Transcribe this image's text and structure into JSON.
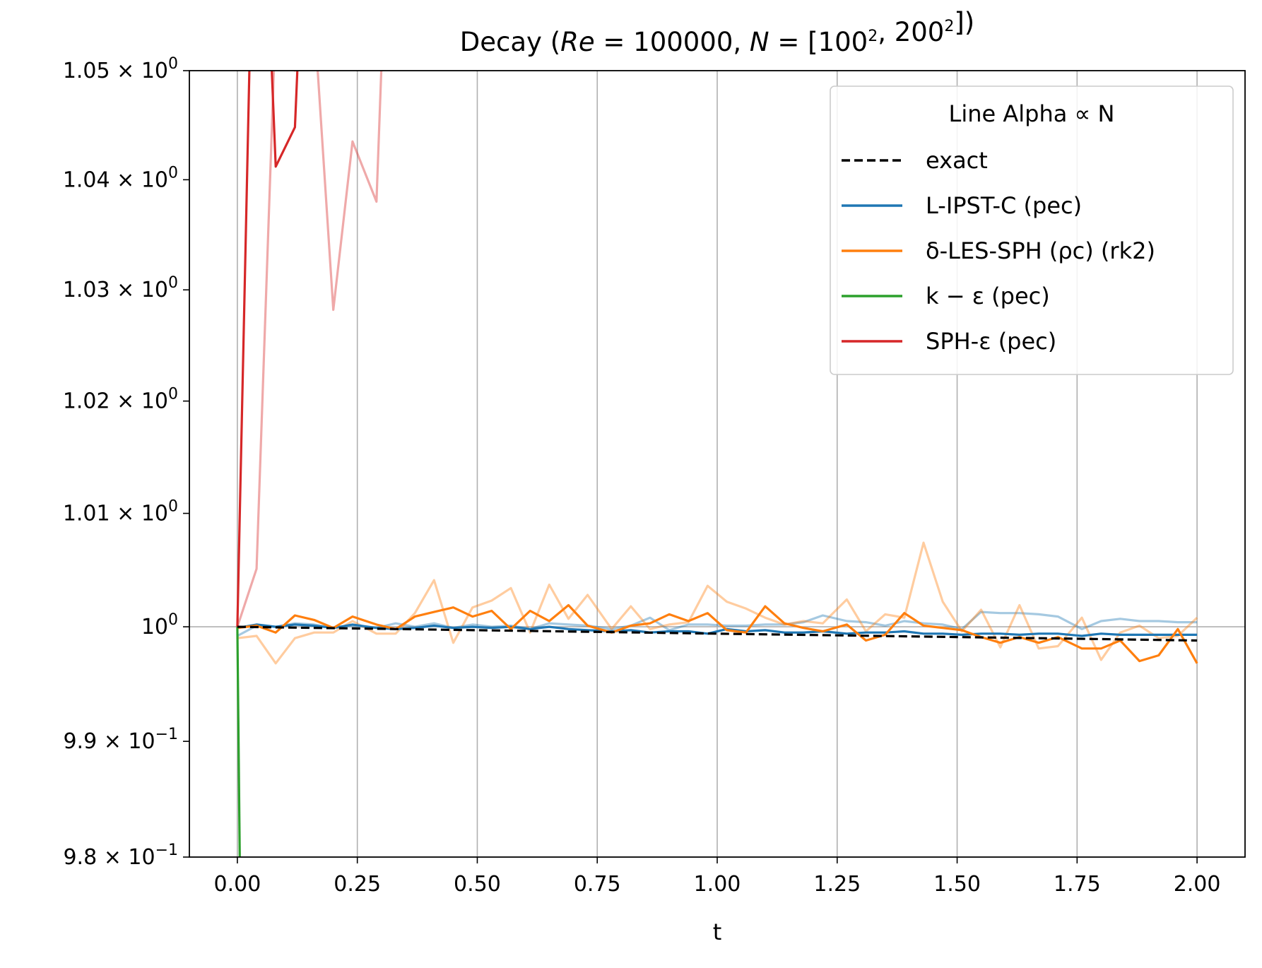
{
  "chart_data": {
    "type": "line",
    "title": "Decay  (Re = 100000, N = [100², 200²])",
    "xlabel": "t",
    "ylabel": "",
    "xlim": [
      -0.1,
      2.1
    ],
    "ylim": [
      0.98,
      1.05
    ],
    "yscale": "log",
    "grid": "x-axis only",
    "reference_line": 1.0,
    "x_ticks": [
      0.0,
      0.25,
      0.5,
      0.75,
      1.0,
      1.25,
      1.5,
      1.75,
      2.0
    ],
    "x_tick_labels": [
      "0.00",
      "0.25",
      "0.50",
      "0.75",
      "1.00",
      "1.25",
      "1.50",
      "1.75",
      "2.00"
    ],
    "y_ticks": [
      0.98,
      0.99,
      1.0,
      1.01,
      1.02,
      1.03,
      1.04,
      1.05
    ],
    "y_tick_labels": [
      {
        "mant": "9.8",
        "exp": "−1"
      },
      {
        "mant": "9.9",
        "exp": "−1"
      },
      {
        "mant": "",
        "exp": "0"
      },
      {
        "mant": "1.01",
        "exp": "0"
      },
      {
        "mant": "1.02",
        "exp": "0"
      },
      {
        "mant": "1.03",
        "exp": "0"
      },
      {
        "mant": "1.04",
        "exp": "0"
      },
      {
        "mant": "1.05",
        "exp": "0"
      }
    ],
    "legend": {
      "title": "Line Alpha ∝ N",
      "placement": "top-right",
      "entries": [
        {
          "label": "exact",
          "color": "#000000",
          "dashed": true
        },
        {
          "label": "L-IPST-C (pec)",
          "color": "#1f77b4"
        },
        {
          "label": "δ-LES-SPH (ρc) (rk2)",
          "color": "#ff7f0e"
        },
        {
          "label": "k − ε (pec)",
          "color": "#2ca02c"
        },
        {
          "label": "SPH-ε (pec)",
          "color": "#d62728"
        }
      ]
    },
    "series": [
      {
        "key": "exact",
        "color": "#000000",
        "alpha": 1.0,
        "dashed": true,
        "x": [
          0.0,
          0.25,
          0.5,
          0.75,
          1.0,
          1.25,
          1.5,
          1.75,
          2.0
        ],
        "y": [
          1.0,
          0.99985,
          0.9997,
          0.99955,
          0.9994,
          0.99925,
          0.9991,
          0.99895,
          0.9988
        ]
      },
      {
        "key": "lipst-low",
        "color": "#1f77b4",
        "alpha": 0.4,
        "x": [
          0.0,
          0.04,
          0.08,
          0.12,
          0.16,
          0.2,
          0.24,
          0.29,
          0.33,
          0.37,
          0.41,
          0.45,
          0.49,
          0.53,
          0.57,
          0.61,
          0.65,
          0.69,
          0.73,
          0.78,
          0.82,
          0.86,
          0.9,
          0.94,
          0.98,
          1.02,
          1.06,
          1.1,
          1.14,
          1.18,
          1.22,
          1.27,
          1.31,
          1.35,
          1.39,
          1.43,
          1.47,
          1.51,
          1.55,
          1.59,
          1.63,
          1.67,
          1.71,
          1.76,
          1.8,
          1.84,
          1.88,
          1.92,
          1.96,
          2.0
        ],
        "y": [
          0.9992,
          1.0001,
          1.0,
          1.0003,
          1.0002,
          0.9999,
          1.0001,
          0.9999,
          1.0003,
          1.0,
          1.0003,
          0.9999,
          1.0002,
          1.0,
          1.0001,
          0.9998,
          1.0003,
          1.0002,
          1.0001,
          0.9998,
          1.0001,
          1.0008,
          0.9997,
          1.0002,
          1.0002,
          1.0001,
          1.0001,
          1.0002,
          1.0002,
          1.0004,
          1.001,
          1.0005,
          1.0004,
          1.0001,
          1.0005,
          1.0003,
          1.0002,
          0.9998,
          1.0013,
          1.0012,
          1.0012,
          1.0011,
          1.0009,
          0.9998,
          1.0005,
          1.0007,
          1.0005,
          1.0005,
          1.0004,
          1.0004
        ]
      },
      {
        "key": "lipst-high",
        "color": "#1f77b4",
        "alpha": 1.0,
        "x": [
          0.0,
          0.04,
          0.08,
          0.12,
          0.16,
          0.2,
          0.24,
          0.29,
          0.33,
          0.37,
          0.41,
          0.45,
          0.49,
          0.53,
          0.57,
          0.61,
          0.65,
          0.69,
          0.73,
          0.78,
          0.82,
          0.86,
          0.9,
          0.94,
          0.98,
          1.02,
          1.06,
          1.1,
          1.14,
          1.18,
          1.22,
          1.27,
          1.31,
          1.35,
          1.39,
          1.43,
          1.47,
          1.51,
          1.55,
          1.59,
          1.63,
          1.67,
          1.71,
          1.76,
          1.8,
          1.84,
          1.88,
          1.92,
          1.96,
          2.0
        ],
        "y": [
          0.9999,
          1.0002,
          1.0,
          1.0002,
          1.0001,
          0.9999,
          1.0002,
          0.9999,
          0.9998,
          0.9999,
          1.0001,
          0.9999,
          1.0,
          0.9999,
          1.0,
          0.9998,
          1.0,
          0.9998,
          0.9997,
          0.9996,
          0.9997,
          0.9995,
          0.9996,
          0.9996,
          0.9994,
          0.9998,
          0.9996,
          0.9997,
          0.9995,
          0.9995,
          0.9996,
          0.9994,
          0.9995,
          0.9995,
          0.9996,
          0.9994,
          0.9994,
          0.9993,
          0.9994,
          0.9994,
          0.9993,
          0.9994,
          0.9994,
          0.9992,
          0.9994,
          0.9993,
          0.9993,
          0.9993,
          0.9993,
          0.9993
        ]
      },
      {
        "key": "les-low",
        "color": "#ff7f0e",
        "alpha": 0.4,
        "x": [
          0.0,
          0.04,
          0.08,
          0.12,
          0.16,
          0.2,
          0.24,
          0.29,
          0.33,
          0.37,
          0.41,
          0.45,
          0.49,
          0.53,
          0.57,
          0.61,
          0.65,
          0.69,
          0.73,
          0.78,
          0.82,
          0.86,
          0.9,
          0.94,
          0.98,
          1.02,
          1.06,
          1.1,
          1.14,
          1.18,
          1.22,
          1.27,
          1.31,
          1.35,
          1.39,
          1.43,
          1.47,
          1.51,
          1.55,
          1.59,
          1.63,
          1.67,
          1.71,
          1.76,
          1.8,
          1.84,
          1.88,
          1.92,
          1.96,
          2.0
        ],
        "y": [
          0.999,
          0.9992,
          0.9968,
          0.999,
          0.9995,
          0.9995,
          1.0005,
          0.9994,
          0.9994,
          1.0012,
          1.0041,
          0.9986,
          1.0017,
          1.0023,
          1.0034,
          0.9995,
          1.0037,
          1.0007,
          1.0028,
          0.9998,
          1.0018,
          0.9998,
          1.0002,
          1.0004,
          1.0036,
          1.0022,
          1.0016,
          1.0008,
          1.0002,
          1.0005,
          1.0003,
          1.0024,
          0.9996,
          1.0011,
          1.0008,
          1.0074,
          1.0022,
          0.9996,
          1.0015,
          0.9982,
          1.0019,
          0.9981,
          0.9983,
          1.0008,
          0.9971,
          0.9995,
          1.0001,
          0.999,
          0.9992,
          1.0008
        ]
      },
      {
        "key": "les-high",
        "color": "#ff7f0e",
        "alpha": 1.0,
        "x": [
          0.0,
          0.04,
          0.08,
          0.12,
          0.16,
          0.2,
          0.24,
          0.29,
          0.33,
          0.37,
          0.41,
          0.45,
          0.49,
          0.53,
          0.57,
          0.61,
          0.65,
          0.69,
          0.73,
          0.78,
          0.82,
          0.86,
          0.9,
          0.94,
          0.98,
          1.02,
          1.06,
          1.1,
          1.14,
          1.18,
          1.22,
          1.27,
          1.31,
          1.35,
          1.39,
          1.43,
          1.47,
          1.51,
          1.55,
          1.59,
          1.63,
          1.67,
          1.71,
          1.76,
          1.8,
          1.84,
          1.88,
          1.92,
          1.96,
          2.0
        ],
        "y": [
          0.9999,
          1.0001,
          0.9995,
          1.001,
          1.0006,
          0.9999,
          1.0009,
          1.0002,
          0.9998,
          1.0009,
          1.0013,
          1.0017,
          1.0009,
          1.0014,
          0.9998,
          1.0014,
          1.0005,
          1.0019,
          1.0001,
          0.9995,
          1.0001,
          1.0003,
          1.0011,
          1.0005,
          1.0012,
          0.9997,
          0.9995,
          1.0018,
          1.0003,
          0.9999,
          0.9996,
          1.0002,
          0.9988,
          0.9993,
          1.0012,
          1.0001,
          0.9999,
          0.9997,
          0.9991,
          0.9986,
          0.9991,
          0.9986,
          0.9991,
          0.9981,
          0.9981,
          0.9988,
          0.997,
          0.9975,
          0.9998,
          0.9968
        ]
      },
      {
        "key": "keps",
        "color": "#2ca02c",
        "alpha": 1.0,
        "x": [
          0.0,
          0.005
        ],
        "y": [
          1.0,
          0.98
        ]
      },
      {
        "key": "sph-low",
        "color": "#d62728",
        "alpha": 0.4,
        "x": [
          0.0,
          0.04,
          0.08,
          0.12,
          0.16,
          0.2,
          0.24,
          0.29,
          0.3,
          0.32
        ],
        "y": [
          1.0,
          1.0051,
          1.055,
          1.05,
          1.055,
          1.0282,
          1.0435,
          1.038,
          1.05,
          1.055
        ]
      },
      {
        "key": "sph-high",
        "color": "#d62728",
        "alpha": 1.0,
        "x": [
          0.0,
          0.025,
          0.03,
          0.07,
          0.08,
          0.12,
          0.125,
          0.14
        ],
        "y": [
          1.0,
          1.05,
          1.055,
          1.052,
          1.0412,
          1.0448,
          1.05,
          1.055
        ]
      }
    ]
  }
}
